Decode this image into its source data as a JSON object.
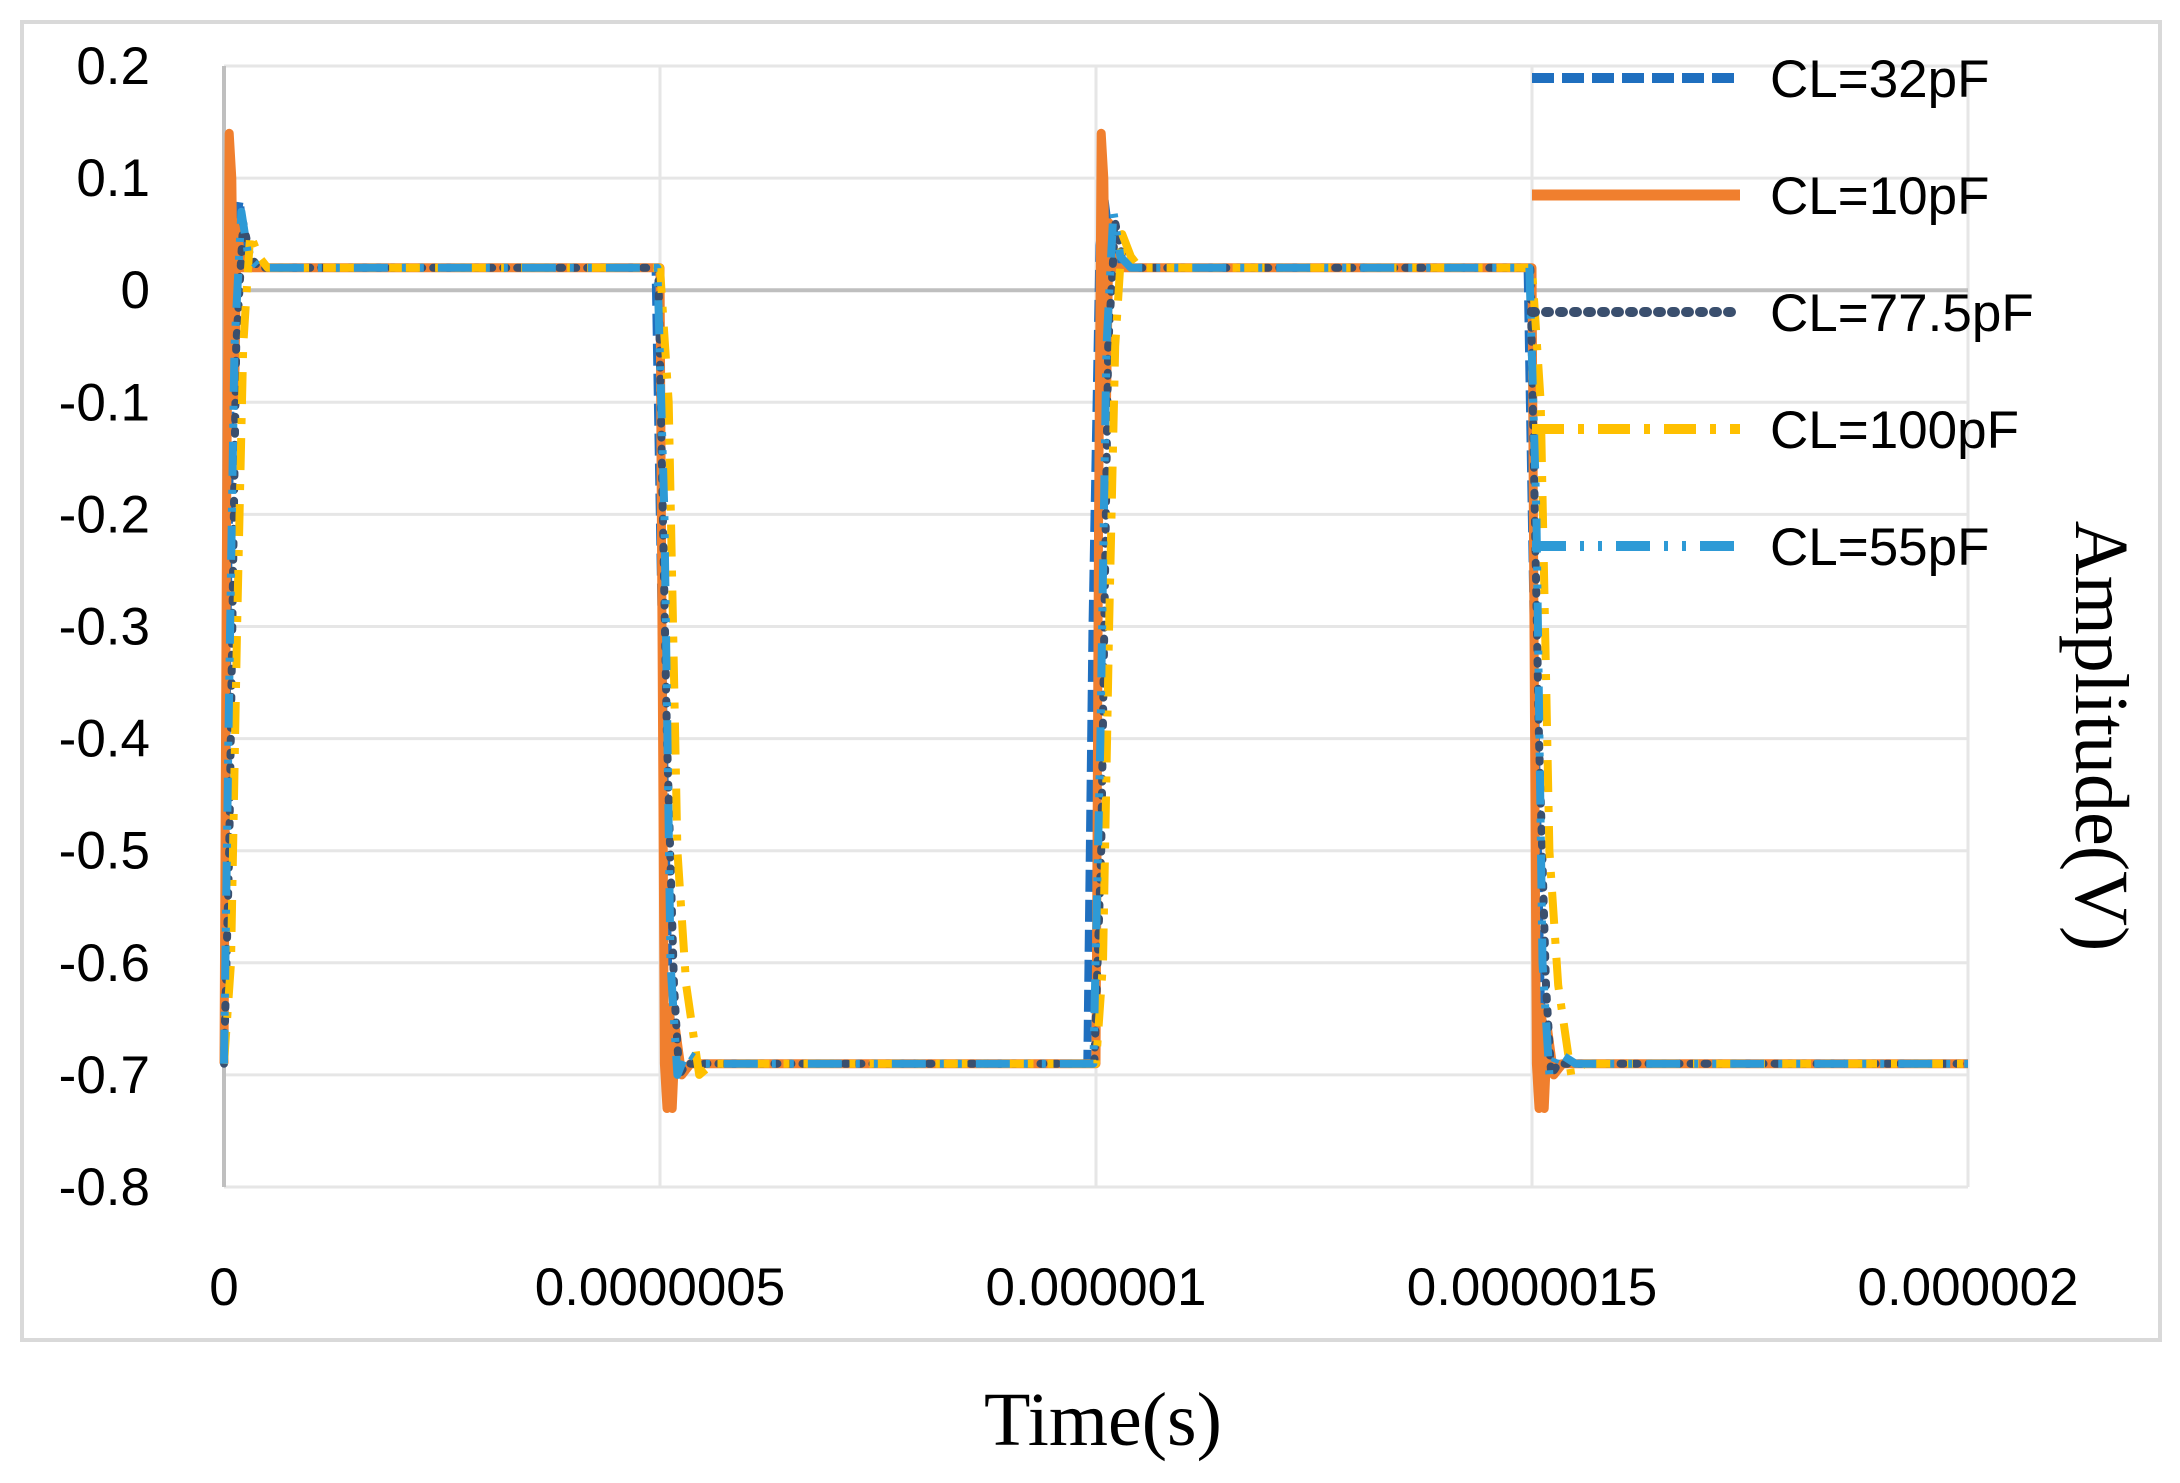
{
  "chart_data": {
    "type": "line",
    "title": "",
    "xlabel": "Time(s)",
    "ylabel": "Amplitude(V)",
    "xlim": [
      0,
      2e-06
    ],
    "ylim": [
      -0.8,
      0.2
    ],
    "x_ticks": [
      "0",
      "0.0000005",
      "0.000001",
      "0.0000015",
      "0.000002"
    ],
    "y_ticks": [
      "0.2",
      "0.1",
      "0",
      "-0.1",
      "-0.2",
      "-0.3",
      "-0.4",
      "-0.5",
      "-0.6",
      "-0.7",
      "-0.8"
    ],
    "grid": true,
    "legend_position": "top-right",
    "series": [
      {
        "name": "CL=32pF",
        "color": "#1f6fbf",
        "dash": "dashed",
        "x": [
          0,
          4e-09,
          1e-08,
          1.8e-08,
          2.5e-08,
          4e-08,
          4.95e-07,
          5.02e-07,
          5.1e-07,
          5.18e-07,
          5.3e-07,
          5.5e-07,
          9.9e-07,
          9.96e-07,
          1.004e-06,
          1.01e-06,
          1.018e-06,
          1.025e-06,
          1.04e-06,
          1.495e-06,
          1.502e-06,
          1.51e-06,
          1.518e-06,
          1.53e-06,
          1.55e-06,
          2e-06
        ],
        "y": [
          -0.69,
          -0.3,
          0.04,
          0.08,
          0.03,
          0.02,
          0.02,
          -0.3,
          -0.63,
          -0.7,
          -0.69,
          -0.69,
          -0.69,
          -0.3,
          0.04,
          0.08,
          0.03,
          0.025,
          0.02,
          0.02,
          -0.3,
          -0.63,
          -0.7,
          -0.69,
          -0.69,
          -0.69
        ]
      },
      {
        "name": "CL=10pF",
        "color": "#f07f2e",
        "dash": "solid",
        "x": [
          0,
          3e-09,
          6e-09,
          9e-09,
          1.2e-08,
          1.5e-08,
          2e-08,
          3e-08,
          5e-07,
          5.05e-07,
          5.08e-07,
          5.11e-07,
          5.14e-07,
          5.18e-07,
          5.25e-07,
          5.35e-07,
          5.45e-07,
          1e-06,
          1.003e-06,
          1.006e-06,
          1.009e-06,
          1.012e-06,
          1.015e-06,
          1.02e-06,
          1.03e-06,
          1.5e-06,
          1.505e-06,
          1.508e-06,
          1.511e-06,
          1.514e-06,
          1.518e-06,
          1.525e-06,
          1.535e-06,
          1.545e-06,
          2e-06
        ],
        "y": [
          -0.69,
          -0.2,
          0.14,
          0.1,
          -0.1,
          0.06,
          0.02,
          0.02,
          0.02,
          -0.69,
          -0.73,
          -0.64,
          -0.73,
          -0.66,
          -0.7,
          -0.69,
          -0.69,
          -0.69,
          -0.2,
          0.14,
          0.1,
          -0.1,
          0.06,
          0.02,
          0.02,
          0.02,
          -0.69,
          -0.73,
          -0.64,
          -0.73,
          -0.66,
          -0.7,
          -0.69,
          -0.69,
          -0.69
        ]
      },
      {
        "name": "CL=77.5pF",
        "color": "#3a4f6e",
        "dash": "dotted",
        "x": [
          0,
          6e-09,
          1.4e-08,
          2.2e-08,
          3e-08,
          4e-08,
          4.98e-07,
          5.08e-07,
          5.16e-07,
          5.22e-07,
          5.3e-07,
          5.4e-07,
          9.98e-07,
          1.006e-06,
          1.014e-06,
          1.022e-06,
          1.03e-06,
          1.04e-06,
          1.498e-06,
          1.508e-06,
          1.516e-06,
          1.522e-06,
          1.53e-06,
          1.54e-06,
          2e-06
        ],
        "y": [
          -0.69,
          -0.5,
          -0.05,
          0.06,
          0.03,
          0.02,
          0.02,
          -0.4,
          -0.62,
          -0.7,
          -0.69,
          -0.69,
          -0.69,
          -0.5,
          -0.05,
          0.06,
          0.03,
          0.02,
          0.02,
          -0.4,
          -0.62,
          -0.7,
          -0.69,
          -0.69,
          -0.69
        ]
      },
      {
        "name": "CL=100pF",
        "color": "#ffc000",
        "dash": "dashdot",
        "x": [
          0,
          8e-09,
          1.5e-08,
          2.2e-08,
          3e-08,
          4e-08,
          5e-08,
          5e-07,
          5.1e-07,
          5.2e-07,
          5.3e-07,
          5.45e-07,
          5.6e-07,
          1e-06,
          1.008e-06,
          1.015e-06,
          1.022e-06,
          1.03e-06,
          1.04e-06,
          1.05e-06,
          1.5e-06,
          1.51e-06,
          1.52e-06,
          1.53e-06,
          1.545e-06,
          1.56e-06,
          2e-06
        ],
        "y": [
          -0.69,
          -0.6,
          -0.3,
          -0.05,
          0.05,
          0.03,
          0.02,
          0.02,
          -0.1,
          -0.5,
          -0.62,
          -0.7,
          -0.69,
          -0.69,
          -0.6,
          -0.3,
          -0.05,
          0.05,
          0.03,
          0.02,
          0.02,
          -0.1,
          -0.5,
          -0.62,
          -0.7,
          -0.69,
          -0.69
        ]
      },
      {
        "name": "CL=55pF",
        "color": "#2e9ad6",
        "dash": "dashdotdot",
        "x": [
          0,
          5e-09,
          1.2e-08,
          2e-08,
          2.8e-08,
          4e-08,
          4.97e-07,
          5.05e-07,
          5.12e-07,
          5.2e-07,
          5.3e-07,
          5.5e-07,
          9.97e-07,
          1.005e-06,
          1.012e-06,
          1.02e-06,
          1.028e-06,
          1.04e-06,
          1.497e-06,
          1.505e-06,
          1.512e-06,
          1.52e-06,
          1.53e-06,
          1.55e-06,
          2e-06
        ],
        "y": [
          -0.69,
          -0.4,
          -0.05,
          0.07,
          0.03,
          0.02,
          0.02,
          -0.2,
          -0.6,
          -0.7,
          -0.68,
          -0.69,
          -0.69,
          -0.4,
          -0.05,
          0.07,
          0.03,
          0.02,
          0.02,
          -0.2,
          -0.6,
          -0.7,
          -0.68,
          -0.69,
          -0.69
        ]
      }
    ]
  }
}
